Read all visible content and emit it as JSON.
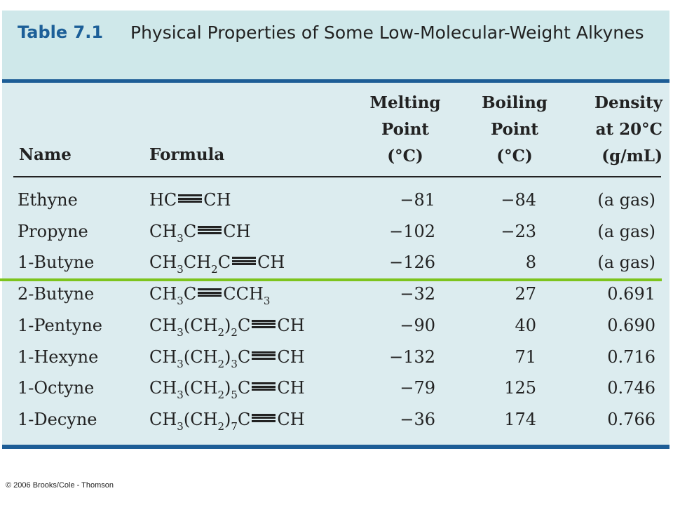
{
  "table": {
    "number": "Table 7.1",
    "title": "Physical Properties of Some Low-Molecular-Weight Alkynes",
    "headers": {
      "name": "Name",
      "formula": "Formula",
      "melting_point": [
        "Melting",
        "Point",
        "(°C)"
      ],
      "boiling_point": [
        "Boiling",
        "Point",
        "(°C)"
      ],
      "density": [
        "Density",
        "at 20°C",
        "(g/mL)"
      ]
    },
    "rows": [
      {
        "name": "Ethyne",
        "formula": [
          {
            "t": "HC"
          },
          {
            "t": "≡",
            "triple": true
          },
          {
            "t": "CH"
          }
        ],
        "mp": "−81",
        "bp": "−84",
        "density": "(a gas)"
      },
      {
        "name": "Propyne",
        "formula": [
          {
            "t": "CH"
          },
          {
            "t": "3",
            "sub": true
          },
          {
            "t": "C"
          },
          {
            "t": "≡",
            "triple": true
          },
          {
            "t": "CH"
          }
        ],
        "mp": "−102",
        "bp": "−23",
        "density": "(a gas)"
      },
      {
        "name": "1-Butyne",
        "formula": [
          {
            "t": "CH"
          },
          {
            "t": "3",
            "sub": true
          },
          {
            "t": "CH"
          },
          {
            "t": "2",
            "sub": true
          },
          {
            "t": "C"
          },
          {
            "t": "≡",
            "triple": true
          },
          {
            "t": "CH"
          }
        ],
        "mp": "−126",
        "bp": "8",
        "density": "(a gas)"
      },
      {
        "name": "2-Butyne",
        "formula": [
          {
            "t": "CH"
          },
          {
            "t": "3",
            "sub": true
          },
          {
            "t": "C"
          },
          {
            "t": "≡",
            "triple": true
          },
          {
            "t": "CCH"
          },
          {
            "t": "3",
            "sub": true
          }
        ],
        "mp": "−32",
        "bp": "27",
        "density": "0.691"
      },
      {
        "name": "1-Pentyne",
        "formula": [
          {
            "t": "CH"
          },
          {
            "t": "3",
            "sub": true
          },
          {
            "t": "(CH"
          },
          {
            "t": "2",
            "sub": true
          },
          {
            "t": ")"
          },
          {
            "t": "2",
            "sub": true
          },
          {
            "t": "C"
          },
          {
            "t": "≡",
            "triple": true
          },
          {
            "t": "CH"
          }
        ],
        "mp": "−90",
        "bp": "40",
        "density": "0.690"
      },
      {
        "name": "1-Hexyne",
        "formula": [
          {
            "t": "CH"
          },
          {
            "t": "3",
            "sub": true
          },
          {
            "t": "(CH"
          },
          {
            "t": "2",
            "sub": true
          },
          {
            "t": ")"
          },
          {
            "t": "3",
            "sub": true
          },
          {
            "t": "C"
          },
          {
            "t": "≡",
            "triple": true
          },
          {
            "t": "CH"
          }
        ],
        "mp": "−132",
        "bp": "71",
        "density": "0.716"
      },
      {
        "name": "1-Octyne",
        "formula": [
          {
            "t": "CH"
          },
          {
            "t": "3",
            "sub": true
          },
          {
            "t": "(CH"
          },
          {
            "t": "2",
            "sub": true
          },
          {
            "t": ")"
          },
          {
            "t": "5",
            "sub": true
          },
          {
            "t": "C"
          },
          {
            "t": "≡",
            "triple": true
          },
          {
            "t": "CH"
          }
        ],
        "mp": "−79",
        "bp": "125",
        "density": "0.746"
      },
      {
        "name": "1-Decyne",
        "formula": [
          {
            "t": "CH"
          },
          {
            "t": "3",
            "sub": true
          },
          {
            "t": "(CH"
          },
          {
            "t": "2",
            "sub": true
          },
          {
            "t": ")"
          },
          {
            "t": "7",
            "sub": true
          },
          {
            "t": "C"
          },
          {
            "t": "≡",
            "triple": true
          },
          {
            "t": "CH"
          }
        ],
        "mp": "−36",
        "bp": "174",
        "density": "0.766"
      }
    ]
  },
  "copyright": "© 2006 Brooks/Cole - Thomson",
  "colors": {
    "title_background": "#cfe8ea",
    "table_background": "#dcecef",
    "rule_blue": "#1d5d96",
    "table_number": "#1c5f98",
    "highlight_line": "#7dc41d"
  }
}
